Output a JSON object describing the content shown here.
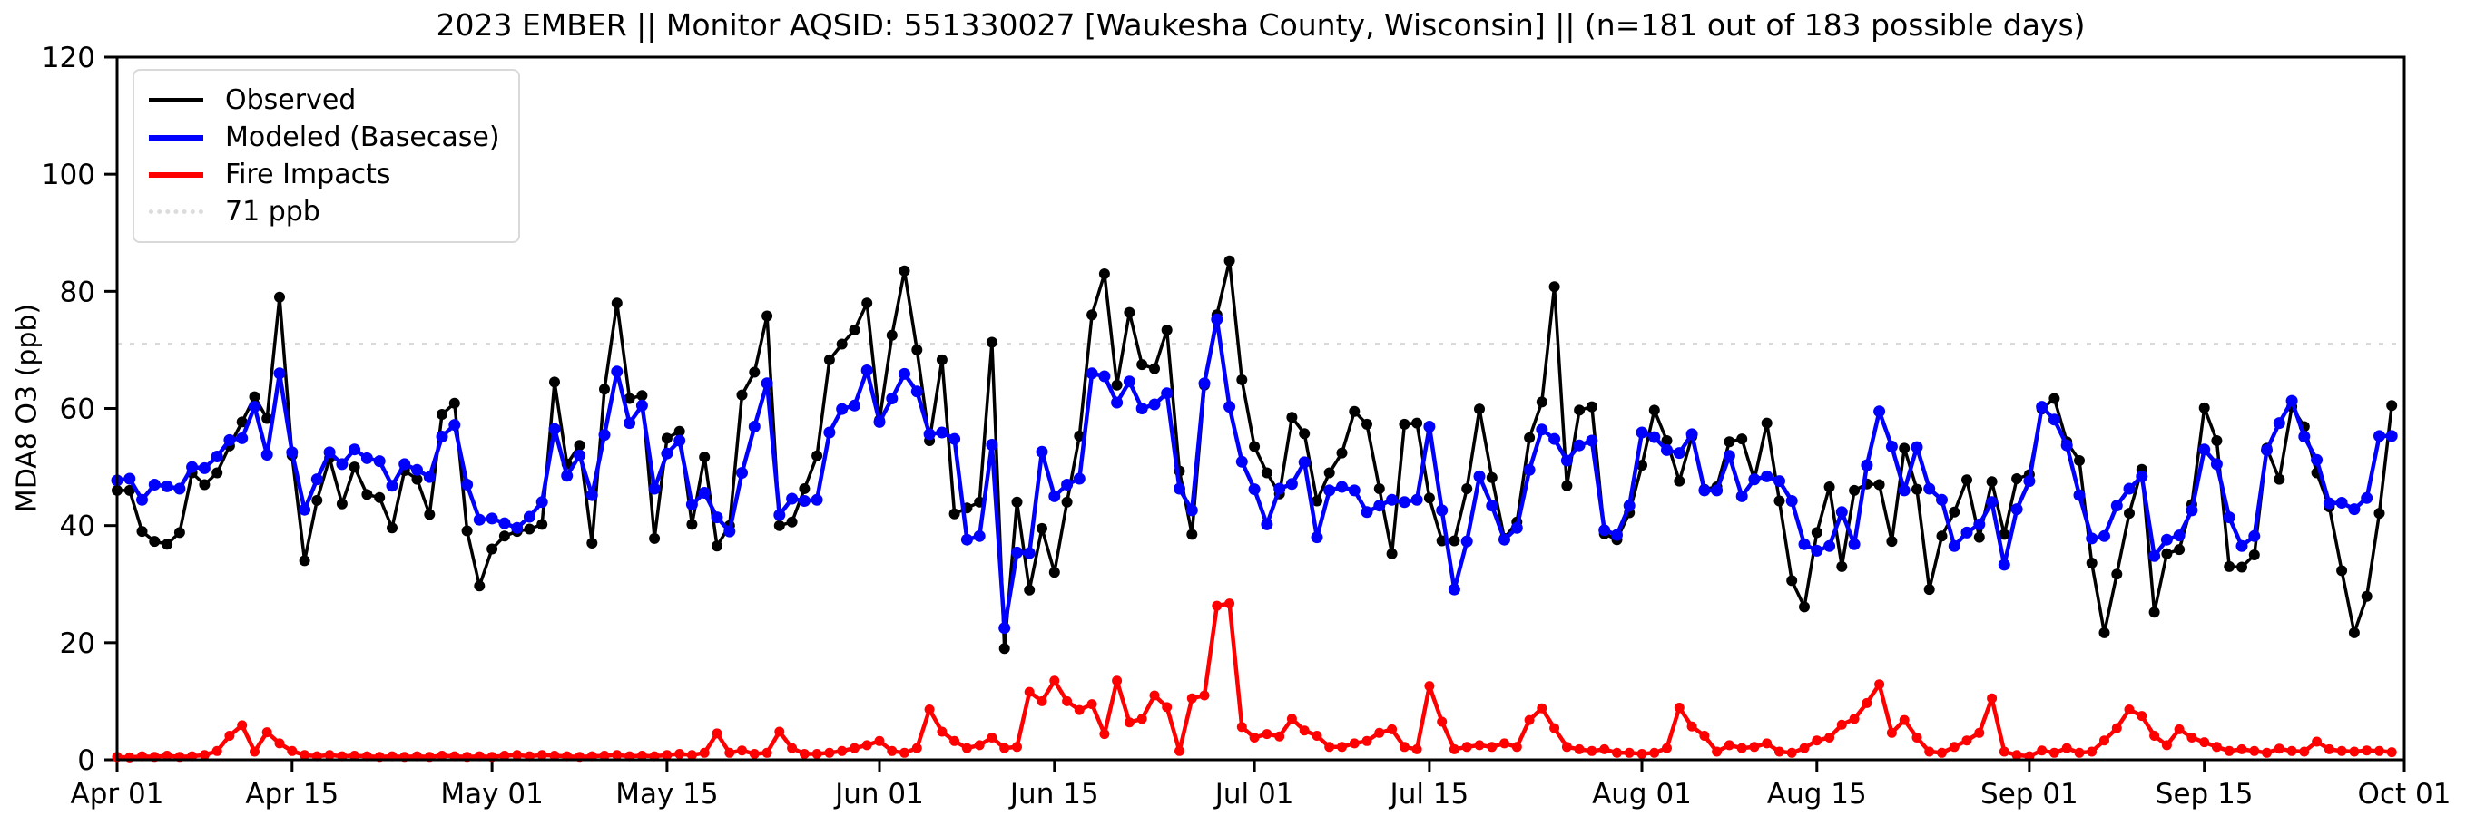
{
  "header": {
    "title": "2023 EMBER || Monitor AQSID: 551330027 [Waukesha County, Wisconsin] || (n=181 out of 183 possible days)"
  },
  "legend": {
    "items": [
      {
        "label": "Observed",
        "color": "#000000",
        "style": "solid"
      },
      {
        "label": "Modeled (Basecase)",
        "color": "#0000ff",
        "style": "solid"
      },
      {
        "label": "Fire Impacts",
        "color": "#ff0000",
        "style": "solid"
      },
      {
        "label": "71 ppb",
        "color": "#dcdcdc",
        "style": "dotted"
      }
    ]
  },
  "chart_data": {
    "type": "line",
    "title": "2023 EMBER || Monitor AQSID: 551330027 [Waukesha County, Wisconsin] || (n=181 out of 183 possible days)",
    "xlabel": "",
    "ylabel": "MDA8 O3 (ppb)",
    "ylim": [
      0,
      120
    ],
    "y_ticks": [
      0,
      20,
      40,
      60,
      80,
      100,
      120
    ],
    "x_days_total": 183,
    "x_start_label": "Apr 01",
    "x_tick_days": [
      0,
      14,
      30,
      44,
      61,
      75,
      91,
      105,
      122,
      136,
      153,
      167,
      183
    ],
    "x_tick_labels": [
      "Apr 01",
      "Apr 15",
      "May 01",
      "May 15",
      "Jun 01",
      "Jun 15",
      "Jul 01",
      "Jul 15",
      "Aug 01",
      "Aug 15",
      "Sep 01",
      "Sep 15",
      "Oct 01"
    ],
    "threshold": {
      "value": 71,
      "label": "71 ppb",
      "color": "#d9d9d9"
    },
    "grid": false,
    "legend_position": "upper left",
    "series": [
      {
        "name": "Observed",
        "color": "#000000",
        "line_width": 3.5,
        "marker_radius": 6,
        "values": [
          46,
          46,
          39,
          37.3,
          36.8,
          38.8,
          49,
          47,
          49,
          53.6,
          57.7,
          62,
          58.3,
          79,
          52,
          34,
          44.3,
          51.5,
          43.7,
          50,
          45.3,
          44.8,
          39.6,
          49.4,
          47.9,
          41.9,
          59,
          60.9,
          39.1,
          29.7,
          36,
          38.2,
          39,
          39.4,
          40.2,
          64.5,
          50.5,
          53.7,
          37,
          63.3,
          78,
          61.7,
          62.2,
          37.8,
          54.9,
          56.1,
          40.2,
          51.7,
          36.5,
          40,
          62.3,
          66.2,
          75.8,
          40,
          40.6,
          46.3,
          51.9,
          68.3,
          71,
          73.4,
          78,
          58,
          72.5,
          83.5,
          70,
          54.5,
          68.3,
          42,
          43,
          44,
          71.3,
          19,
          44,
          29,
          39.5,
          32,
          44,
          55.3,
          76,
          83,
          64,
          76.4,
          67.5,
          66.8,
          73.4,
          49.3,
          38.5,
          64,
          76,
          85.2,
          64.9,
          53.5,
          49,
          45.4,
          58.5,
          55.7,
          44.2,
          49,
          52.4,
          59.5,
          57.3,
          46.3,
          35.2,
          57.3,
          57.5,
          44.7,
          37.4,
          37.4,
          46.3,
          59.9,
          48.2,
          37.8,
          40.6,
          55,
          61.1,
          80.8,
          46.8,
          59.7,
          60.3,
          38.6,
          37.6,
          42.2,
          50.3,
          59.7,
          54.5,
          47.6,
          55.2,
          46.2,
          46.6,
          54.3,
          54.8,
          47.8,
          57.5,
          44.2,
          30.6,
          26.1,
          38.8,
          46.6,
          33,
          46,
          47.1,
          47,
          37.3,
          53.2,
          46.2,
          29.1,
          38.2,
          42.3,
          47.8,
          38,
          47.5,
          38.5,
          48,
          48.7,
          59.9,
          61.7,
          54.3,
          51.1,
          33.6,
          21.7,
          31.7,
          42.1,
          49.6,
          25.2,
          35.2,
          35.9,
          43.6,
          60.1,
          54.5,
          33,
          32.9,
          35,
          53.2,
          47.9,
          60.3,
          56.9,
          49,
          43.2,
          32.3,
          21.7,
          27.9,
          42.1,
          60.5
        ]
      },
      {
        "name": "Modeled (Basecase)",
        "color": "#0000ff",
        "line_width": 4.5,
        "marker_radius": 6.5,
        "values": [
          47.7,
          48,
          44.4,
          47,
          46.7,
          46.3,
          50,
          49.8,
          51.8,
          54.6,
          54.9,
          60.3,
          52.1,
          66,
          52.5,
          42.7,
          47.9,
          52.5,
          50.5,
          53,
          51.5,
          51,
          46.8,
          50.5,
          49.5,
          48.3,
          55.2,
          57.2,
          47,
          41,
          41.2,
          40.4,
          39.6,
          41.5,
          44,
          56.5,
          48.5,
          52,
          45.2,
          55.5,
          66.3,
          57.5,
          60.5,
          46.3,
          52.3,
          54.5,
          43.6,
          45.6,
          41.4,
          39,
          49,
          56.9,
          64.3,
          41.8,
          44.6,
          44.2,
          44.4,
          55.9,
          59.9,
          60.5,
          66.5,
          57.7,
          61.7,
          65.9,
          62.9,
          55.6,
          55.9,
          54.8,
          37.6,
          38.2,
          53.8,
          22.5,
          35.4,
          35.3,
          52.6,
          45,
          47,
          48,
          66,
          65.5,
          61,
          64.6,
          60,
          60.7,
          62.6,
          46.3,
          42.6,
          64.3,
          75.2,
          60.3,
          50.9,
          46.2,
          40.2,
          46.3,
          47.1,
          50.8,
          38,
          46,
          46.6,
          46,
          42.3,
          43.4,
          44.4,
          44,
          44.4,
          56.9,
          42.6,
          29.1,
          37.3,
          48.4,
          43.4,
          37.6,
          39.6,
          49.5,
          56.4,
          54.8,
          51.1,
          53.7,
          54.5,
          39.2,
          38.4,
          43.4,
          55.9,
          55.1,
          52.9,
          52.4,
          55.6,
          46,
          46,
          51.9,
          45,
          47.9,
          48.4,
          47.6,
          44.2,
          36.8,
          35.7,
          36.5,
          42.3,
          36.8,
          50.3,
          59.5,
          53.5,
          46,
          53.4,
          46.3,
          44.4,
          36.5,
          38.8,
          40.2,
          44,
          33.3,
          42.8,
          47.6,
          60.3,
          58.1,
          53.7,
          45.2,
          37.8,
          38.2,
          43.4,
          46.3,
          48.4,
          34.8,
          37.6,
          38.3,
          42.6,
          53,
          50.5,
          41.4,
          36.5,
          38.2,
          52.9,
          57.5,
          61.3,
          55.2,
          51.2,
          43.8,
          43.9,
          42.8,
          44.7,
          55.3,
          55.3
        ]
      },
      {
        "name": "Fire Impacts",
        "color": "#ff0000",
        "line_width": 4.5,
        "marker_radius": 5.5,
        "values": [
          0.5,
          0.4,
          0.6,
          0.5,
          0.7,
          0.5,
          0.6,
          0.8,
          1.5,
          4.1,
          5.9,
          1.4,
          4.7,
          2.8,
          1.5,
          0.8,
          0.6,
          0.8,
          0.6,
          0.7,
          0.6,
          0.5,
          0.6,
          0.5,
          0.6,
          0.5,
          0.7,
          0.6,
          0.5,
          0.6,
          0.5,
          0.7,
          0.8,
          0.6,
          0.8,
          0.7,
          0.6,
          0.5,
          0.6,
          0.7,
          0.8,
          0.6,
          0.7,
          0.6,
          0.8,
          1,
          0.8,
          1.2,
          4.5,
          1.2,
          1.6,
          1,
          1.2,
          4.8,
          2,
          1,
          1,
          1.2,
          1.5,
          2,
          2.5,
          3.2,
          1.5,
          1.2,
          2,
          8.6,
          4.8,
          3.2,
          2,
          2.5,
          3.8,
          2,
          2.2,
          11.6,
          10,
          13.5,
          10,
          8.5,
          9.5,
          4.4,
          13.5,
          6.4,
          7,
          11,
          9,
          1.5,
          10.5,
          11,
          26.3,
          26.7,
          5.6,
          3.8,
          4.4,
          4,
          7,
          5,
          4.1,
          2.2,
          2.2,
          2.8,
          3.2,
          4.6,
          5.2,
          2.2,
          1.8,
          12.6,
          6.5,
          1.8,
          2.2,
          2.5,
          2.2,
          2.8,
          2.2,
          6.8,
          8.8,
          5.4,
          2.2,
          1.8,
          1.5,
          1.8,
          1.2,
          1.2,
          1,
          1.2,
          2,
          8.9,
          5.7,
          4.1,
          1.4,
          2.5,
          2,
          2.2,
          2.8,
          1.4,
          1.2,
          2,
          3.3,
          3.8,
          6,
          7,
          9.7,
          12.9,
          4.6,
          6.8,
          3.8,
          1.4,
          1.2,
          2.2,
          3.3,
          4.6,
          10.5,
          1.4,
          0.8,
          0.6,
          1.6,
          1.2,
          2,
          1.2,
          1.4,
          3.3,
          5.4,
          8.6,
          7.5,
          4.1,
          2.5,
          5.2,
          3.8,
          3,
          2.2,
          1.5,
          1.8,
          1.5,
          1.2,
          1.9,
          1.5,
          1.4,
          3.1,
          1.8,
          1.5,
          1.4,
          1.6,
          1.5,
          1.3
        ]
      }
    ],
    "layout": {
      "plot_left": 129,
      "plot_right": 2649,
      "plot_top": 63,
      "plot_bottom": 838,
      "axis_color": "#000000",
      "background": "#ffffff"
    }
  }
}
